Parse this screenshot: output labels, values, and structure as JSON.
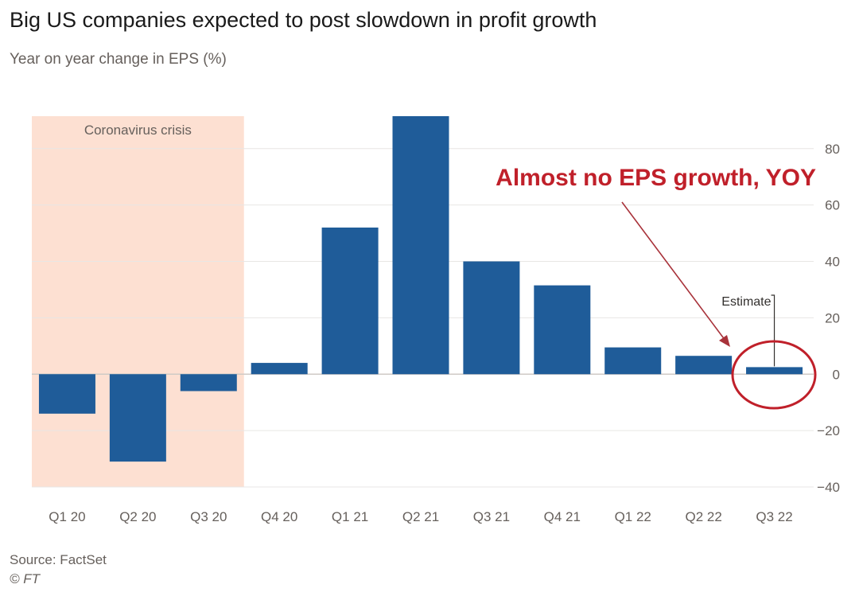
{
  "header": {
    "title": "Big US companies expected to post slowdown in profit growth",
    "subtitle": "Year on year change in EPS (%)"
  },
  "footer": {
    "source": "Source: FactSet",
    "copyright": "© FT"
  },
  "colors": {
    "bar": "#1f5c99",
    "shade": "#fde0d2",
    "annotation": "#c0202a",
    "grid": "#e8e6e4"
  },
  "chart_data": {
    "type": "bar",
    "categories": [
      "Q1 20",
      "Q2 20",
      "Q3 20",
      "Q4 20",
      "Q1 21",
      "Q2 21",
      "Q3 21",
      "Q4 21",
      "Q1 22",
      "Q2 22",
      "Q3 22"
    ],
    "values": [
      -14,
      -31,
      -6,
      4,
      52,
      91.5,
      40,
      31.5,
      9.5,
      6.5,
      2.5
    ],
    "ylim": [
      -40,
      91.5
    ],
    "yticks": [
      -40,
      -20,
      0,
      20,
      40,
      60,
      80
    ],
    "grid": true,
    "shaded_region": {
      "label": "Coronavirus crisis",
      "from": "Q1 20",
      "to": "Q3 20"
    },
    "estimate_label": "Estimate",
    "estimate_category": "Q3 22",
    "annotation": "Almost no EPS growth, YOY"
  }
}
